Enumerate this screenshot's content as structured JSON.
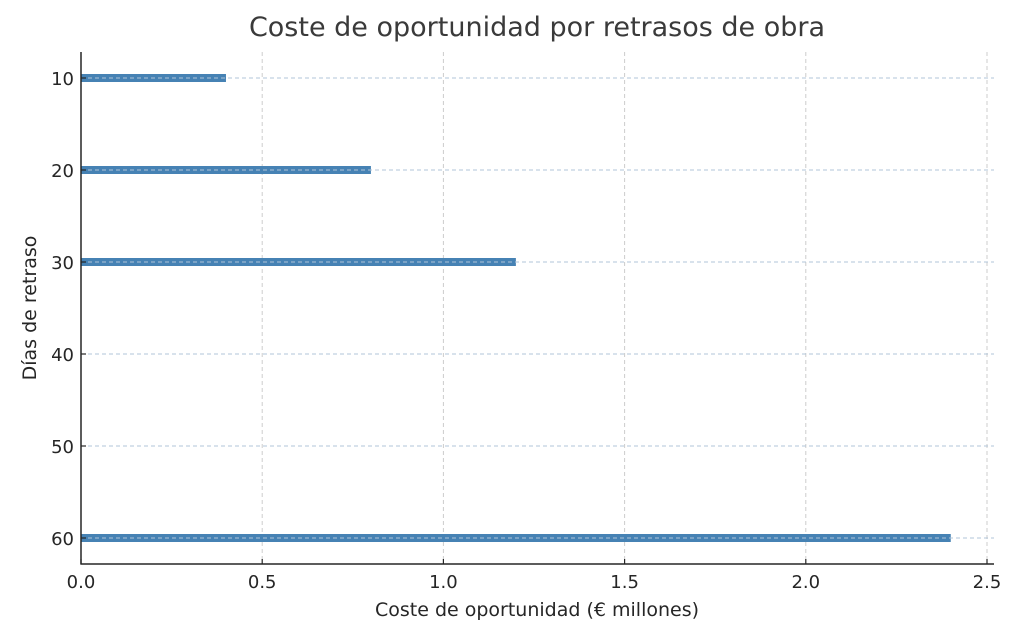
{
  "chart_data": {
    "type": "bar",
    "orientation": "horizontal",
    "title": "Coste de oportunidad por retrasos de obra",
    "xlabel": "Coste de oportunidad (€ millones)",
    "ylabel": "Días de retraso",
    "categories": [
      10,
      20,
      30,
      60
    ],
    "values": [
      0.4,
      0.8,
      1.2,
      2.4
    ],
    "xlim": [
      0,
      2.5
    ],
    "ylim": [
      5,
      65
    ],
    "x_ticks": [
      "0.0",
      "0.5",
      "1.0",
      "1.5",
      "2.0",
      "2.5"
    ],
    "y_ticks": [
      "10",
      "20",
      "30",
      "40",
      "50",
      "60"
    ],
    "y_inverted": true,
    "grid": true,
    "grid_style": "dashed",
    "legend": null,
    "bar_color": "#4682b4"
  }
}
